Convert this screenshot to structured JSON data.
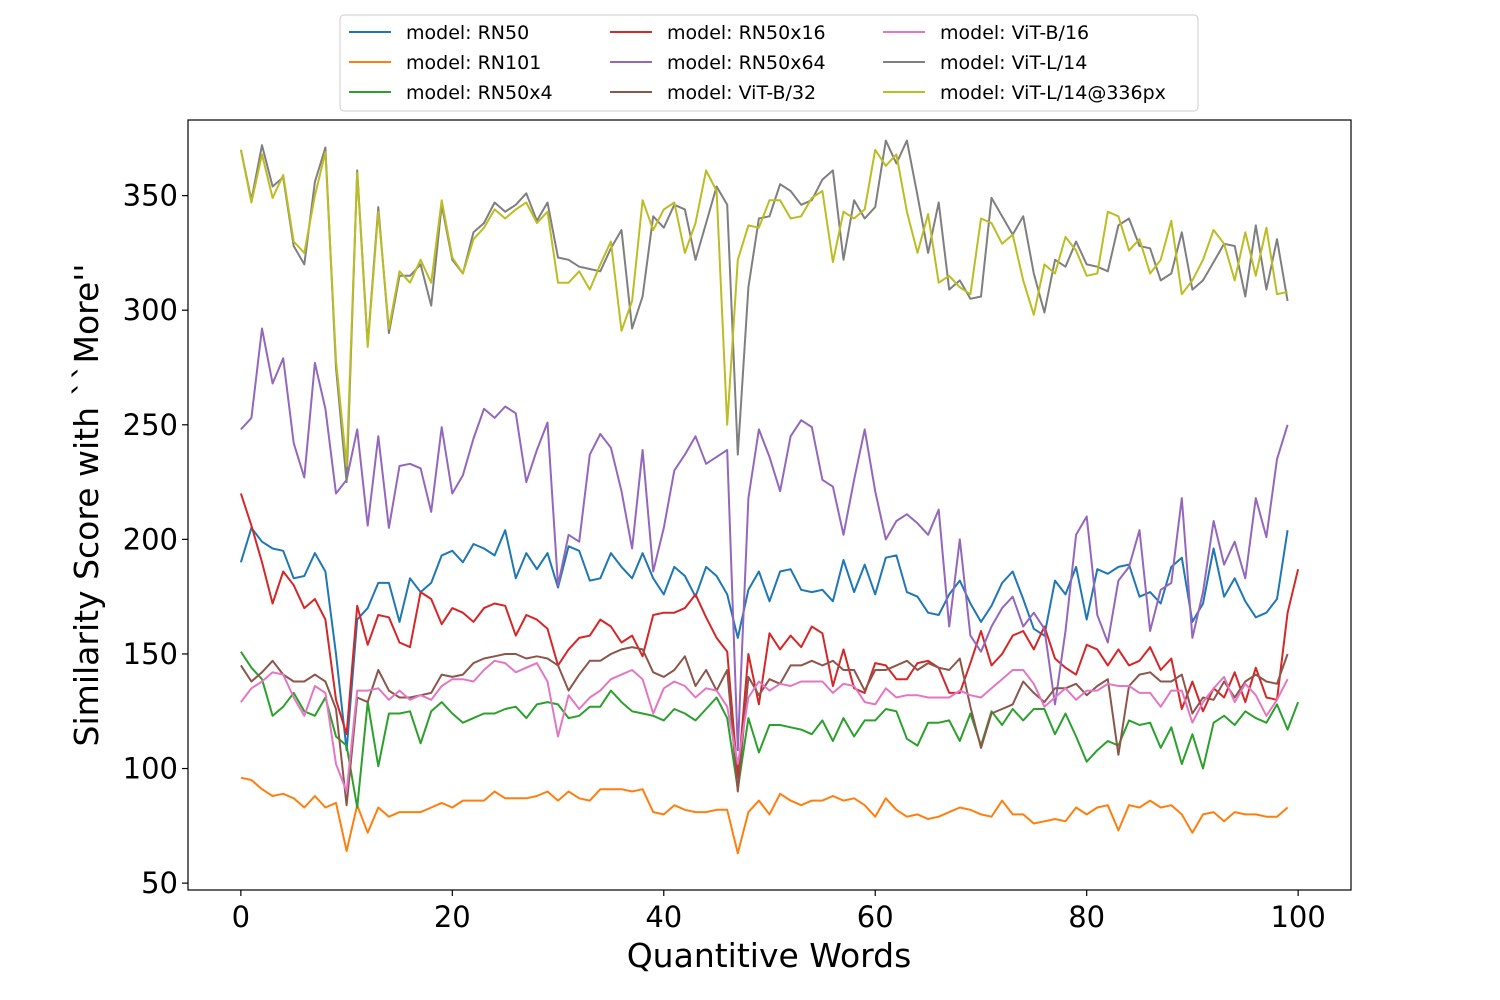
{
  "chart_data": {
    "type": "line",
    "title": "",
    "xlabel": "Quantitive Words",
    "ylabel": "Similarity Score with ``More''",
    "xlim": [
      -5,
      105
    ],
    "ylim": [
      47,
      383
    ],
    "xticks": [
      0,
      20,
      40,
      60,
      80,
      100
    ],
    "yticks": [
      50,
      100,
      150,
      200,
      250,
      300,
      350
    ],
    "grid": false,
    "legend": {
      "placement": "top-center, outside plot area",
      "columns": 3
    },
    "series": [
      {
        "name": "model: RN50",
        "color": "#1f77b4",
        "values": [
          190,
          205,
          199,
          196,
          195,
          183,
          184,
          194,
          186,
          150,
          108,
          165,
          170,
          181,
          181,
          164,
          183,
          177,
          181,
          193,
          195,
          190,
          198,
          196,
          193,
          204,
          183,
          194,
          187,
          194,
          179,
          197,
          195,
          182,
          183,
          194,
          188,
          183,
          194,
          183,
          176,
          188,
          184,
          175,
          188,
          184,
          176,
          157,
          178,
          186,
          173,
          186,
          187,
          178,
          177,
          178,
          173,
          191,
          177,
          189,
          176,
          192,
          193,
          177,
          175,
          168,
          167,
          176,
          182,
          172,
          164,
          171,
          181,
          186,
          174,
          161,
          158,
          182,
          176,
          188,
          165,
          187,
          185,
          188,
          189,
          175,
          177,
          172,
          188,
          192,
          164,
          172,
          196,
          175,
          183,
          173,
          166,
          168,
          174,
          204
        ]
      },
      {
        "name": "model: RN101",
        "color": "#ff7f0e",
        "values": [
          96,
          95,
          91,
          88,
          89,
          87,
          83,
          88,
          83,
          85,
          64,
          84,
          72,
          83,
          79,
          81,
          81,
          81,
          83,
          85,
          83,
          86,
          86,
          86,
          90,
          87,
          87,
          87,
          88,
          90,
          86,
          90,
          87,
          86,
          91,
          91,
          91,
          90,
          91,
          81,
          80,
          84,
          82,
          81,
          81,
          82,
          82,
          63,
          81,
          86,
          80,
          89,
          86,
          84,
          86,
          86,
          88,
          86,
          87,
          84,
          79,
          87,
          82,
          79,
          80,
          78,
          79,
          81,
          83,
          82,
          80,
          79,
          86,
          80,
          80,
          76,
          77,
          78,
          77,
          83,
          80,
          83,
          84,
          73,
          84,
          83,
          86,
          83,
          84,
          80,
          72,
          80,
          81,
          77,
          81,
          80,
          80,
          79,
          79,
          83
        ]
      },
      {
        "name": "model: RN50x4",
        "color": "#2ca02c",
        "values": [
          151,
          144,
          139,
          123,
          127,
          133,
          125,
          123,
          131,
          114,
          110,
          83,
          129,
          101,
          124,
          124,
          125,
          111,
          125,
          129,
          124,
          120,
          122,
          124,
          124,
          126,
          127,
          122,
          128,
          129,
          128,
          122,
          123,
          127,
          127,
          134,
          129,
          125,
          124,
          123,
          121,
          126,
          124,
          121,
          126,
          131,
          122,
          91,
          122,
          107,
          119,
          119,
          118,
          117,
          115,
          121,
          112,
          122,
          114,
          121,
          121,
          126,
          125,
          113,
          110,
          120,
          120,
          121,
          112,
          124,
          110,
          125,
          119,
          126,
          121,
          126,
          126,
          115,
          124,
          114,
          103,
          108,
          112,
          110,
          121,
          119,
          120,
          109,
          118,
          102,
          115,
          100,
          120,
          123,
          119,
          125,
          122,
          120,
          128,
          117,
          129
        ]
      },
      {
        "name": "model: RN50x16",
        "color": "#d62728",
        "values": [
          220,
          206,
          190,
          172,
          186,
          180,
          170,
          174,
          165,
          130,
          115,
          171,
          154,
          167,
          166,
          155,
          153,
          177,
          174,
          163,
          170,
          168,
          164,
          170,
          172,
          171,
          158,
          167,
          165,
          161,
          145,
          152,
          157,
          158,
          165,
          162,
          155,
          158,
          149,
          167,
          168,
          168,
          170,
          176,
          166,
          157,
          151,
          96,
          150,
          128,
          159,
          152,
          158,
          153,
          162,
          159,
          136,
          152,
          135,
          133,
          146,
          145,
          139,
          139,
          146,
          147,
          144,
          133,
          133,
          146,
          160,
          145,
          150,
          158,
          160,
          152,
          162,
          148,
          144,
          141,
          154,
          152,
          145,
          152,
          145,
          147,
          153,
          143,
          148,
          126,
          138,
          125,
          135,
          131,
          142,
          129,
          144,
          131,
          130,
          168,
          187
        ]
      },
      {
        "name": "model: RN50x64",
        "color": "#9467bd",
        "values": [
          248,
          253,
          292,
          268,
          279,
          242,
          227,
          277,
          257,
          220,
          226,
          248,
          206,
          245,
          205,
          232,
          233,
          231,
          212,
          249,
          220,
          228,
          244,
          257,
          253,
          258,
          255,
          225,
          239,
          251,
          180,
          202,
          199,
          237,
          246,
          240,
          221,
          196,
          239,
          186,
          205,
          230,
          237,
          245,
          233,
          236,
          239,
          108,
          218,
          248,
          236,
          221,
          245,
          252,
          249,
          226,
          223,
          202,
          226,
          248,
          221,
          200,
          208,
          211,
          207,
          202,
          213,
          162,
          200,
          158,
          151,
          162,
          170,
          175,
          162,
          168,
          161,
          128,
          160,
          202,
          210,
          167,
          155,
          182,
          188,
          204,
          160,
          178,
          181,
          218,
          157,
          177,
          208,
          189,
          199,
          183,
          218,
          201,
          235,
          250
        ]
      },
      {
        "name": "model: ViT-B/32",
        "color": "#8c564b",
        "values": [
          145,
          138,
          142,
          147,
          141,
          138,
          138,
          141,
          138,
          126,
          84,
          131,
          129,
          143,
          134,
          131,
          131,
          132,
          133,
          141,
          140,
          141,
          146,
          148,
          149,
          150,
          150,
          148,
          149,
          148,
          145,
          134,
          141,
          147,
          147,
          150,
          152,
          153,
          152,
          142,
          140,
          143,
          149,
          136,
          143,
          134,
          143,
          90,
          140,
          132,
          139,
          137,
          145,
          145,
          147,
          145,
          147,
          143,
          143,
          134,
          143,
          143,
          145,
          147,
          143,
          146,
          144,
          143,
          148,
          127,
          109,
          124,
          126,
          128,
          138,
          133,
          129,
          135,
          135,
          137,
          132,
          136,
          139,
          106,
          136,
          141,
          142,
          138,
          138,
          141,
          124,
          131,
          130,
          138,
          131,
          138,
          141,
          138,
          137,
          150
        ]
      },
      {
        "name": "model: ViT-B/16",
        "color": "#e377c2",
        "values": [
          129,
          135,
          138,
          142,
          141,
          131,
          123,
          136,
          133,
          102,
          90,
          134,
          134,
          135,
          130,
          134,
          130,
          132,
          130,
          136,
          139,
          139,
          138,
          143,
          147,
          146,
          142,
          144,
          146,
          138,
          114,
          132,
          126,
          131,
          134,
          139,
          141,
          143,
          139,
          124,
          135,
          138,
          136,
          131,
          135,
          134,
          127,
          102,
          131,
          138,
          134,
          137,
          136,
          138,
          138,
          138,
          133,
          137,
          136,
          129,
          128,
          135,
          131,
          132,
          132,
          131,
          131,
          131,
          134,
          132,
          131,
          135,
          139,
          143,
          143,
          137,
          127,
          131,
          135,
          130,
          134,
          134,
          137,
          136,
          136,
          133,
          133,
          127,
          134,
          134,
          120,
          129,
          135,
          140,
          129,
          137,
          132,
          123,
          130,
          139
        ]
      },
      {
        "name": "model: ViT-L/14",
        "color": "#7f7f7f",
        "values": [
          370,
          348,
          372,
          354,
          358,
          328,
          320,
          356,
          371,
          275,
          225,
          361,
          285,
          345,
          290,
          315,
          315,
          320,
          302,
          346,
          322,
          316,
          334,
          338,
          347,
          343,
          346,
          351,
          339,
          347,
          323,
          322,
          319,
          318,
          317,
          327,
          335,
          292,
          306,
          341,
          336,
          346,
          344,
          322,
          338,
          354,
          346,
          237,
          310,
          340,
          341,
          355,
          352,
          346,
          348,
          357,
          361,
          322,
          348,
          340,
          345,
          374,
          364,
          374,
          350,
          325,
          347,
          309,
          313,
          305,
          306,
          349,
          341,
          333,
          341,
          316,
          299,
          322,
          319,
          330,
          320,
          319,
          317,
          337,
          340,
          328,
          327,
          313,
          316,
          334,
          309,
          313,
          321,
          329,
          328,
          306,
          337,
          309,
          331,
          304
        ]
      },
      {
        "name": "model: ViT-L/14@336px",
        "color": "#bcbd22",
        "values": [
          370,
          347,
          368,
          349,
          359,
          330,
          325,
          350,
          369,
          278,
          232,
          360,
          284,
          343,
          292,
          317,
          312,
          322,
          312,
          348,
          323,
          316,
          331,
          336,
          344,
          340,
          344,
          347,
          338,
          343,
          312,
          312,
          317,
          309,
          320,
          330,
          291,
          304,
          348,
          335,
          344,
          347,
          325,
          338,
          361,
          352,
          250,
          322,
          337,
          336,
          348,
          348,
          340,
          341,
          349,
          352,
          321,
          343,
          340,
          344,
          370,
          363,
          368,
          343,
          325,
          342,
          312,
          315,
          310,
          307,
          340,
          338,
          329,
          333,
          313,
          298,
          320,
          316,
          332,
          326,
          315,
          316,
          343,
          341,
          326,
          331,
          316,
          322,
          339,
          307,
          313,
          322,
          335,
          329,
          313,
          334,
          315,
          336,
          307,
          308
        ]
      }
    ]
  }
}
